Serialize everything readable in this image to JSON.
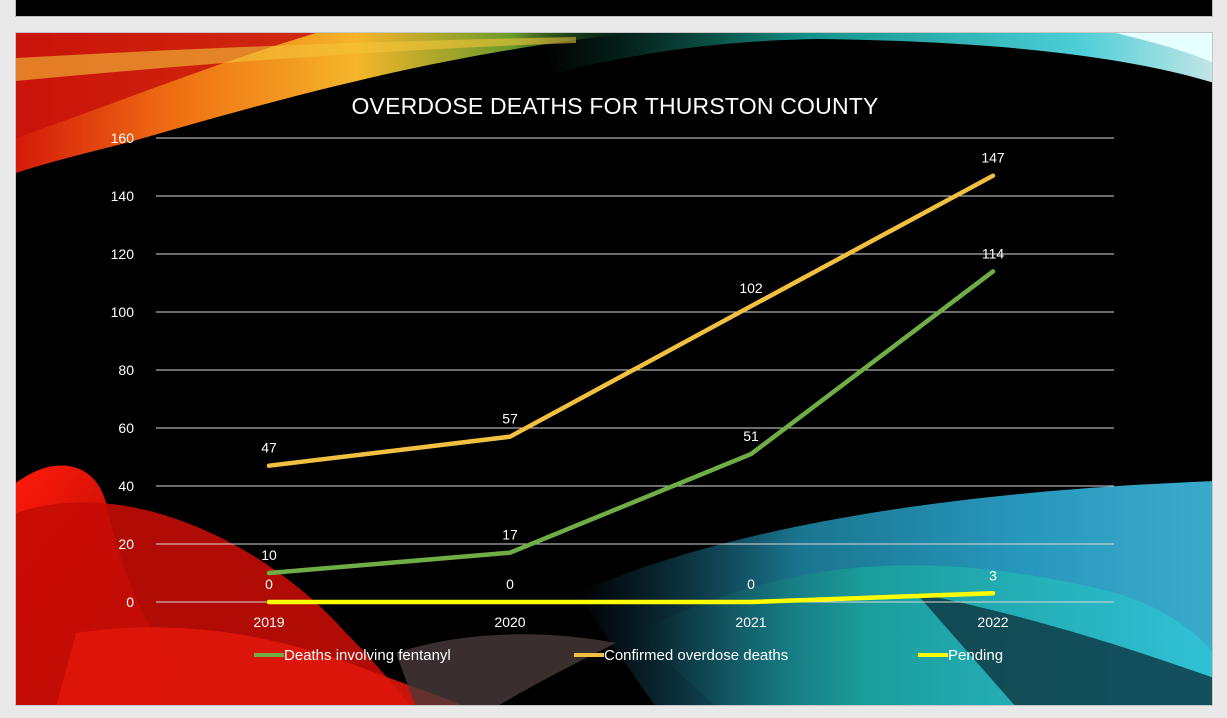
{
  "chart_data": {
    "type": "line",
    "title": "OVERDOSE DEATHS FOR THURSTON COUNTY",
    "xlabel": "",
    "ylabel": "",
    "categories": [
      "2019",
      "2020",
      "2021",
      "2022"
    ],
    "ylim": [
      0,
      160
    ],
    "yticks": [
      "0",
      "20",
      "40",
      "60",
      "80",
      "100",
      "120",
      "140",
      "160"
    ],
    "grid": true,
    "legend_position": "bottom",
    "series": [
      {
        "name": "Deaths involving fentanyl",
        "values": [
          10,
          17,
          51,
          114
        ],
        "labels": [
          "10",
          "17",
          "51",
          "114"
        ],
        "color": "#70ad47"
      },
      {
        "name": "Confirmed overdose deaths",
        "values": [
          47,
          57,
          102,
          147
        ],
        "labels": [
          "47",
          "57",
          "102",
          "147"
        ],
        "color": "#f2c040"
      },
      {
        "name": "Pending",
        "values": [
          0,
          0,
          0,
          3
        ],
        "labels": [
          "0",
          "0",
          "0",
          "3"
        ],
        "color": "#ffff00"
      }
    ]
  }
}
